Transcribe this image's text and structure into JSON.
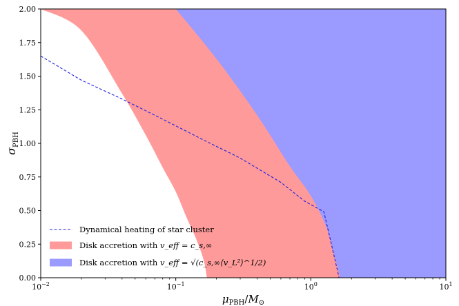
{
  "chart_data": {
    "type": "area",
    "title": "",
    "xlabel": "μPBH/M⊙",
    "ylabel": "σPBH",
    "xscale": "log",
    "xlim": [
      0.01,
      10
    ],
    "ylim": [
      0,
      2
    ],
    "grid": false,
    "legend_position": "lower-left",
    "x_ticks": [
      {
        "value": 0.01,
        "label": "10−2"
      },
      {
        "value": 0.1,
        "label": "10−1"
      },
      {
        "value": 1,
        "label": "100"
      },
      {
        "value": 10,
        "label": "101"
      }
    ],
    "y_ticks": [
      {
        "value": 0.0,
        "label": "0.00"
      },
      {
        "value": 0.25,
        "label": "0.25"
      },
      {
        "value": 0.5,
        "label": "0.50"
      },
      {
        "value": 0.75,
        "label": "0.75"
      },
      {
        "value": 1.0,
        "label": "1.00"
      },
      {
        "value": 1.25,
        "label": "1.25"
      },
      {
        "value": 1.5,
        "label": "1.50"
      },
      {
        "value": 1.75,
        "label": "1.75"
      },
      {
        "value": 2.0,
        "label": "2.00"
      }
    ],
    "series": [
      {
        "name": "Dynamical heating of star cluster",
        "kind": "line",
        "style": "dashed",
        "color": "#1f1fe0",
        "points": [
          [
            0.01,
            1.65
          ],
          [
            0.02,
            1.47
          ],
          [
            0.04,
            1.33
          ],
          [
            0.08,
            1.18
          ],
          [
            0.15,
            1.04
          ],
          [
            0.3,
            0.89
          ],
          [
            0.6,
            0.71
          ],
          [
            0.9,
            0.57
          ],
          [
            1.25,
            0.49
          ],
          [
            1.62,
            0.0
          ]
        ]
      },
      {
        "name": "Disk accretion with v_eff = c_s,∞",
        "kind": "region",
        "color": "#ff9a9a",
        "lower_boundary": [
          [
            0.01,
            2.0
          ],
          [
            0.02,
            1.84
          ],
          [
            0.04,
            1.37
          ],
          [
            0.06,
            1.06
          ],
          [
            0.08,
            0.82
          ],
          [
            0.1,
            0.64
          ],
          [
            0.12,
            0.45
          ],
          [
            0.14,
            0.3
          ],
          [
            0.16,
            0.14
          ],
          [
            0.17,
            0.0
          ]
        ]
      },
      {
        "name": "Disk accretion with v_eff = sqrt(c_s,∞ ⟨v_L^2⟩^1/2)",
        "kind": "region",
        "color": "#9a9aff",
        "lower_boundary": [
          [
            0.1,
            2.0
          ],
          [
            0.2,
            1.63
          ],
          [
            0.4,
            1.21
          ],
          [
            0.7,
            0.83
          ],
          [
            1.0,
            0.61
          ],
          [
            1.3,
            0.38
          ],
          [
            1.5,
            0.16
          ],
          [
            1.65,
            0.0
          ]
        ]
      }
    ],
    "legend": [
      {
        "series": 0,
        "label_prefix": "Dynamical heating of star cluster",
        "label_math": ""
      },
      {
        "series": 1,
        "label_prefix": "Disk accretion with ",
        "label_math": "v_eff = c_s,∞"
      },
      {
        "series": 2,
        "label_prefix": "Disk accretion with ",
        "label_math": "v_eff = √(c_s,∞⟨v_L²⟩^1/2)"
      }
    ]
  }
}
